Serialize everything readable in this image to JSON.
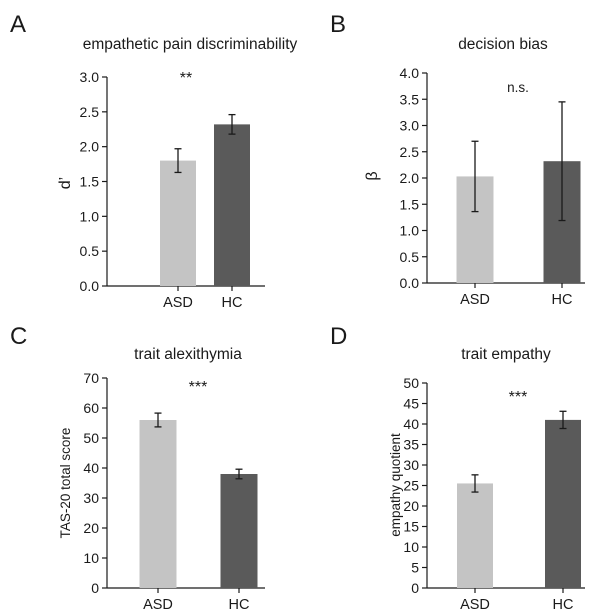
{
  "chart_data": [
    {
      "panel_label": "A",
      "type": "bar",
      "title": "empathetic pain discriminability",
      "ylabel": "d’",
      "xlabel": "",
      "categories": [
        "ASD",
        "HC"
      ],
      "values": [
        1.8,
        2.32
      ],
      "errors": [
        0.17,
        0.14
      ],
      "ylim": [
        0,
        3
      ],
      "yticks": [
        "0.0",
        "0.5",
        "1.0",
        "1.5",
        "2.0",
        "2.5",
        "3.0"
      ],
      "significance": "**",
      "grid": false
    },
    {
      "panel_label": "B",
      "type": "bar",
      "title": "decision bias",
      "ylabel": "β",
      "xlabel": "",
      "categories": [
        "ASD",
        "HC"
      ],
      "values": [
        2.03,
        2.32
      ],
      "errors": [
        0.67,
        1.13
      ],
      "ylim": [
        0,
        4
      ],
      "yticks": [
        "0.0",
        "0.5",
        "1.0",
        "1.5",
        "2.0",
        "2.5",
        "3.0",
        "3.5",
        "4.0"
      ],
      "significance": "n.s.",
      "grid": false
    },
    {
      "panel_label": "C",
      "type": "bar",
      "title": "trait alexithymia",
      "ylabel": "TAS-20 total score",
      "xlabel": "",
      "categories": [
        "ASD",
        "HC"
      ],
      "values": [
        56,
        38
      ],
      "errors": [
        2.3,
        1.6
      ],
      "ylim": [
        0,
        70
      ],
      "yticks": [
        "0",
        "10",
        "20",
        "30",
        "40",
        "50",
        "60",
        "70"
      ],
      "significance": "***",
      "grid": false
    },
    {
      "panel_label": "D",
      "type": "bar",
      "title": "trait empathy",
      "ylabel": "empathy quotient",
      "xlabel": "",
      "categories": [
        "ASD",
        "HC"
      ],
      "values": [
        25.5,
        41
      ],
      "errors": [
        2.1,
        2.1
      ],
      "ylim": [
        0,
        50
      ],
      "yticks": [
        "0",
        "5",
        "10",
        "15",
        "20",
        "25",
        "30",
        "35",
        "40",
        "45",
        "50"
      ],
      "significance": "***",
      "grid": false
    }
  ],
  "colors": {
    "asd_bar": "#c4c4c4",
    "hc_bar": "#5a5a5a",
    "axis": "#1a1a1a"
  }
}
